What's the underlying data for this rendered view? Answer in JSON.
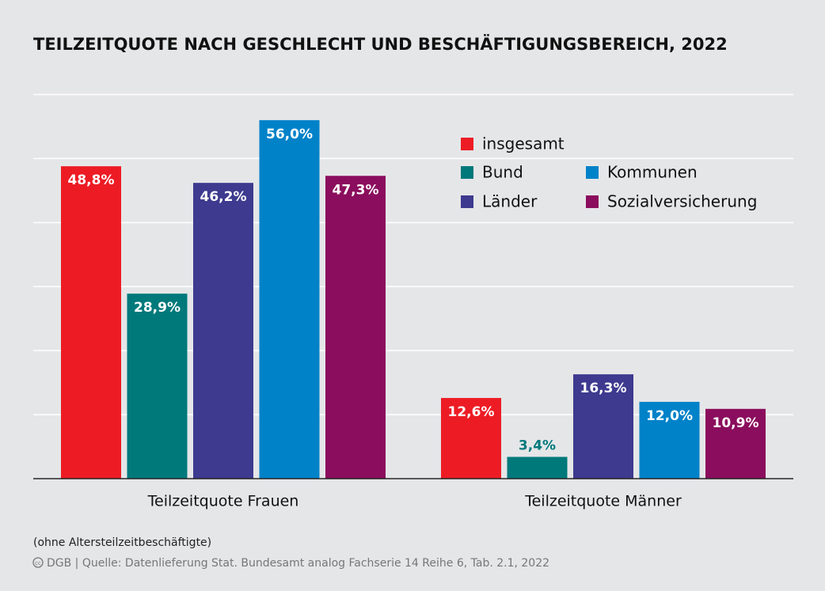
{
  "chart_data": {
    "type": "bar",
    "title": "TEILZEITQUOTE NACH GESCHLECHT UND BESCHÄFTIGUNGSBEREICH, 2022",
    "categories": [
      "Teilzeitquote Frauen",
      "Teilzeitquote Männer"
    ],
    "series": [
      {
        "name": "insgesamt",
        "color": "#ed1c24",
        "values": [
          48.8,
          12.6
        ],
        "value_labels": [
          "48,8%",
          "12,6%"
        ]
      },
      {
        "name": "Bund",
        "color": "#00797b",
        "values": [
          28.9,
          3.4
        ],
        "value_labels": [
          "28,9%",
          "3,4%"
        ]
      },
      {
        "name": "Länder",
        "color": "#3d3a8f",
        "values": [
          46.2,
          16.3
        ],
        "value_labels": [
          "46,2%",
          "16,3%"
        ]
      },
      {
        "name": "Kommunen",
        "color": "#0082c9",
        "values": [
          56.0,
          12.0
        ],
        "value_labels": [
          "56,0%",
          "12,0%"
        ]
      },
      {
        "name": "Sozialversicherung",
        "color": "#8b0d5d",
        "values": [
          47.3,
          10.9
        ],
        "value_labels": [
          "47,3%",
          "10,9%"
        ]
      }
    ],
    "ylim": [
      0,
      60
    ],
    "yticks": [
      0,
      10,
      20,
      30,
      40,
      50,
      60
    ],
    "grid": true,
    "note": "(ohne Altersteilzeitbeschäftigte)",
    "source": "DGB | Quelle: Datenlieferung Stat. Bundesamt analog Fachserie 14 Reihe 6, Tab. 2.1, 2022"
  }
}
